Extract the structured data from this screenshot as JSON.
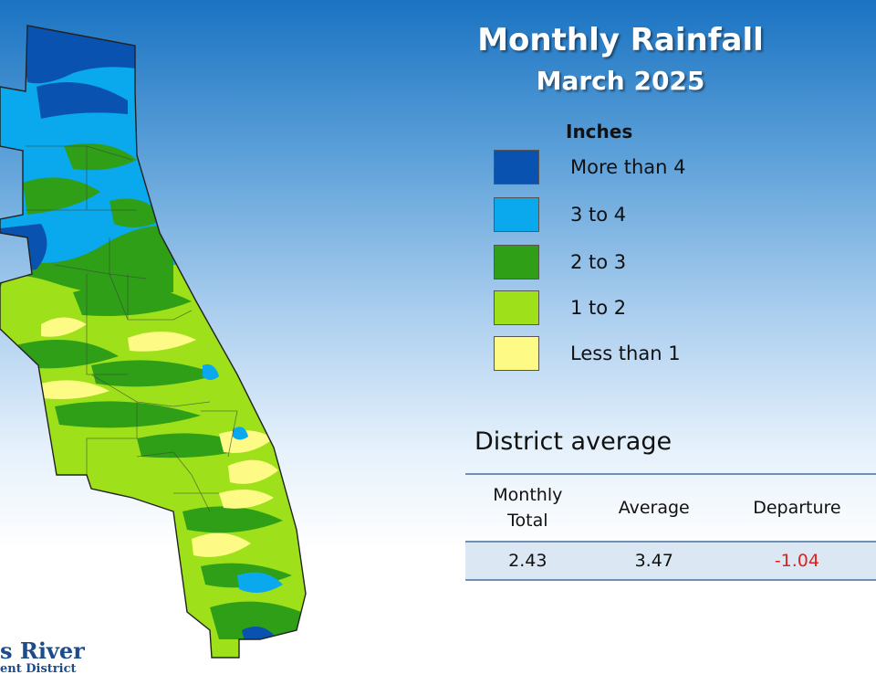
{
  "title": "Monthly Rainfall",
  "subtitle": "March 2025",
  "legend": {
    "heading": "Inches",
    "items": [
      {
        "label": "More than 4",
        "color": "#0a52b0"
      },
      {
        "label": "3 to 4",
        "color": "#0aa8ec"
      },
      {
        "label": "2 to 3",
        "color": "#2f9f17"
      },
      {
        "label": "1 to 2",
        "color": "#9ee11a"
      },
      {
        "label": "Less than 1",
        "color": "#fdfb86"
      }
    ]
  },
  "district": {
    "heading": "District average",
    "columns": [
      "Monthly\nTotal",
      "Average",
      "Departure"
    ],
    "values": [
      "2.43",
      "3.47",
      "-1.04"
    ],
    "departure_color": "#e02020"
  },
  "logo": {
    "line1": "s River",
    "line2": "ent District"
  },
  "map": {
    "region_shape": "district-counties",
    "colors": {
      "more_than_4": "#0a52b0",
      "3_to_4": "#0aa8ec",
      "2_to_3": "#2f9f17",
      "1_to_2": "#9ee11a",
      "less_than_1": "#fdfb86"
    }
  }
}
